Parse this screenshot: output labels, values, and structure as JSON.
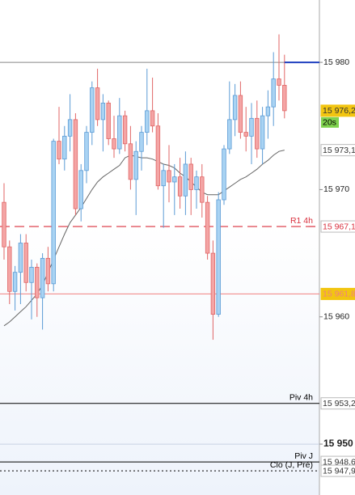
{
  "chart_data": {
    "type": "candlestick",
    "open": [
      15969,
      15965.5,
      15962,
      15963.5,
      15965.8,
      15962.7,
      15963.9,
      15961.5,
      15964.6,
      15962.6,
      15973.8,
      15972.4,
      15974.2,
      15975.5,
      15968.5,
      15971.5,
      15974.5,
      15978,
      15975.5,
      15976.8,
      15974,
      15973.2,
      15975.8,
      15973.6,
      15970.8,
      15973,
      15974.5,
      15976.2,
      15975,
      15970.3,
      15971.5,
      15970.6,
      15971,
      15969.5,
      15972,
      15970,
      15971,
      15969,
      15965,
      15960.2,
      15969.2,
      15973.2,
      15975.5,
      15977.4,
      15974.5,
      15974.2,
      15975.6,
      15973.2,
      15975.8,
      15976.5,
      15978.7,
      15978.2
    ],
    "high": [
      15970.5,
      15966,
      15964,
      15966.5,
      15966.5,
      15964.5,
      15964.2,
      15965,
      15965.5,
      15974,
      15976.5,
      15975,
      15977.5,
      15976,
      15972,
      15975,
      15978.5,
      15979.5,
      15977.5,
      15977,
      15975.8,
      15977.2,
      15976.2,
      15975,
      15973.8,
      15975,
      15979.5,
      15978.8,
      15976,
      15972,
      15973.5,
      15972,
      15972.5,
      15973,
      15972.5,
      15971.5,
      15972,
      15969.5,
      15966,
      15969.8,
      15973.5,
      15978.5,
      15978.3,
      15978.5,
      15976.5,
      15976.8,
      15977,
      15976.5,
      15977.8,
      15980.8,
      15982.2,
      15980.6
    ],
    "low": [
      15964.5,
      15961,
      15960.5,
      15961,
      15962,
      15959.8,
      15960,
      15959,
      15962,
      15962,
      15972,
      15971.5,
      15973,
      15968,
      15967.5,
      15970.5,
      15973.5,
      15975,
      15973,
      15973.5,
      15972.5,
      15972.8,
      15973,
      15970,
      15968,
      15971.5,
      15973.5,
      15974.5,
      15970,
      15967,
      15969,
      15968,
      15968.5,
      15968,
      15968,
      15968.5,
      15967.8,
      15964.5,
      15958.2,
      15960,
      15968.8,
      15972.8,
      15974.2,
      15974,
      15973,
      15972,
      15972.5,
      15972,
      15974,
      15975,
      15977,
      15975.6
    ],
    "close": [
      15965.5,
      15962,
      15963.5,
      15965.8,
      15962.7,
      15963.9,
      15961.5,
      15964.6,
      15962.6,
      15973.8,
      15972.4,
      15974.2,
      15975.5,
      15968.5,
      15971.5,
      15974.5,
      15978,
      15975.5,
      15976.8,
      15974,
      15973.2,
      15975.8,
      15973.6,
      15970.8,
      15973,
      15974.5,
      15976.2,
      15975,
      15970.3,
      15971.5,
      15970.6,
      15971,
      15969.5,
      15972,
      15970,
      15971,
      15969,
      15965,
      15960.2,
      15969.2,
      15973.2,
      15975.5,
      15977.4,
      15974.5,
      15974.2,
      15975.6,
      15973.2,
      15975.8,
      15976.5,
      15978.7,
      15978.2,
      15976.2
    ],
    "ma": [
      15959.3,
      15959.6,
      15960,
      15960.4,
      15960.8,
      15961.3,
      15961.8,
      15962.5,
      15963.5,
      15964.5,
      15965.5,
      15966.5,
      15967.4,
      15968,
      15968.6,
      15969.3,
      15970,
      15970.6,
      15971,
      15971.3,
      15971.6,
      15971.9,
      15972.5,
      15972.7,
      15972.6,
      15972.5,
      15972.5,
      15972.4,
      15972.2,
      15972,
      15971.9,
      15971.7,
      15971.3,
      15971,
      15970.6,
      15970.2,
      15969.8,
      15969.6,
      15969.6,
      15969.6,
      15969.9,
      15970.2,
      15970.5,
      15970.8,
      15971,
      15971.3,
      15971.6,
      15972,
      15972.3,
      15972.7,
      15973,
      15973.1
    ],
    "up_color": "#5b9bd5",
    "up_fill": "#a9d3f3",
    "down_color": "#e06666",
    "down_fill": "#f4a5a5",
    "ma_color": "#666666",
    "ylim": [
      15946,
      15984.9
    ],
    "yticks": [
      {
        "value": 15980,
        "label": "15 980"
      },
      {
        "value": 15970,
        "label": "15 970"
      },
      {
        "value": 15960,
        "label": "15 960"
      },
      {
        "value": 15950,
        "label": "15 950"
      }
    ],
    "major_tick": 15950,
    "reference_line": {
      "value": 15980,
      "color": "#888888"
    },
    "ask_line": {
      "value": 15980,
      "color": "#1f3fbf"
    },
    "timer": "20s",
    "levels": [
      {
        "value": 15976.2,
        "label": "15 976,2",
        "badge": "#f2c511"
      },
      {
        "value": 15973.1,
        "label": "15 973,1",
        "badge": "#ffffff"
      },
      {
        "value": 15967.1,
        "label": "15 967,1",
        "badge": "#ffffff",
        "name": "R1 4h",
        "color": "#d9303e",
        "dash": "dash"
      },
      {
        "value": 15961.8,
        "label": "15 961,8",
        "badge": "#f2c511",
        "color": "#f08080",
        "dash": "solid"
      },
      {
        "value": 15953.2,
        "label": "15 953,2",
        "badge": "#ffffff",
        "name": "Piv 4h",
        "color": "#000000",
        "dash": "solid"
      },
      {
        "value": 15948.6,
        "label": "15 948,6",
        "badge": "#ffffff",
        "name": "Piv J",
        "color": "#000000",
        "dash": "solid"
      },
      {
        "value": 15947.9,
        "label": "15 947,9",
        "badge": "#ffffff",
        "name": "Clo (J, Pré)",
        "color": "#000000",
        "dash": "dot"
      }
    ]
  }
}
